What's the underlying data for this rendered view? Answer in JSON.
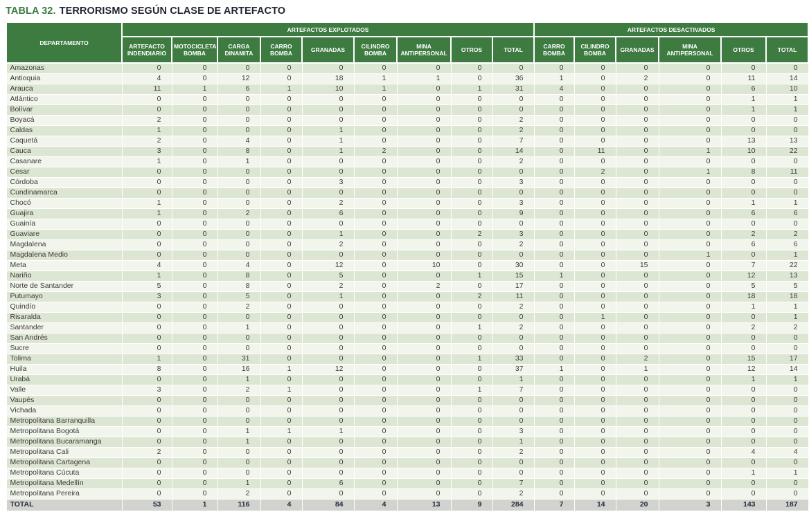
{
  "chart_data": {
    "type": "table",
    "title_prefix": "TABLA 32.",
    "title_text": "TERRORISMO SEGÚN CLASE DE ARTEFACTO",
    "header": {
      "departamento": "DEPARTAMENTO",
      "groups": [
        "ARTEFACTOS EXPLOTADOS",
        "ARTEFACTOS DESACTIVADOS"
      ],
      "columns_explotados": [
        "ARTEFACTO INDENDIARIO",
        "MOTOCICLETA BOMBA",
        "CARGA DINAMITA",
        "CARRO BOMBA",
        "GRANADAS",
        "CILINDRO BOMBA",
        "MINA ANTIPERSONAL",
        "OTROS",
        "TOTAL"
      ],
      "columns_desactivados": [
        "CARRO BOMBA",
        "CILINDRO BOMBA",
        "GRANADAS",
        "MINA ANTIPERSONAL",
        "OTROS",
        "TOTAL"
      ]
    },
    "rows": [
      {
        "departamento": "Amazonas",
        "values": [
          0,
          0,
          0,
          0,
          0,
          0,
          0,
          0,
          0,
          0,
          0,
          0,
          0,
          0,
          0
        ]
      },
      {
        "departamento": "Antioquia",
        "values": [
          4,
          0,
          12,
          0,
          18,
          1,
          1,
          0,
          36,
          1,
          0,
          2,
          0,
          11,
          14
        ]
      },
      {
        "departamento": "Arauca",
        "values": [
          11,
          1,
          6,
          1,
          10,
          1,
          0,
          1,
          31,
          4,
          0,
          0,
          0,
          6,
          10
        ]
      },
      {
        "departamento": "Atlántico",
        "values": [
          0,
          0,
          0,
          0,
          0,
          0,
          0,
          0,
          0,
          0,
          0,
          0,
          0,
          1,
          1
        ]
      },
      {
        "departamento": "Bolívar",
        "values": [
          0,
          0,
          0,
          0,
          0,
          0,
          0,
          0,
          0,
          0,
          0,
          0,
          0,
          1,
          1
        ]
      },
      {
        "departamento": "Boyacá",
        "values": [
          2,
          0,
          0,
          0,
          0,
          0,
          0,
          0,
          2,
          0,
          0,
          0,
          0,
          0,
          0
        ]
      },
      {
        "departamento": "Caldas",
        "values": [
          1,
          0,
          0,
          0,
          1,
          0,
          0,
          0,
          2,
          0,
          0,
          0,
          0,
          0,
          0
        ]
      },
      {
        "departamento": "Caquetá",
        "values": [
          2,
          0,
          4,
          0,
          1,
          0,
          0,
          0,
          7,
          0,
          0,
          0,
          0,
          13,
          13
        ]
      },
      {
        "departamento": "Cauca",
        "values": [
          3,
          0,
          8,
          0,
          1,
          2,
          0,
          0,
          14,
          0,
          11,
          0,
          1,
          10,
          22
        ]
      },
      {
        "departamento": "Casanare",
        "values": [
          1,
          0,
          1,
          0,
          0,
          0,
          0,
          0,
          2,
          0,
          0,
          0,
          0,
          0,
          0
        ]
      },
      {
        "departamento": "Cesar",
        "values": [
          0,
          0,
          0,
          0,
          0,
          0,
          0,
          0,
          0,
          0,
          2,
          0,
          1,
          8,
          11
        ]
      },
      {
        "departamento": "Córdoba",
        "values": [
          0,
          0,
          0,
          0,
          3,
          0,
          0,
          0,
          3,
          0,
          0,
          0,
          0,
          0,
          0
        ]
      },
      {
        "departamento": "Cundinamarca",
        "values": [
          0,
          0,
          0,
          0,
          0,
          0,
          0,
          0,
          0,
          0,
          0,
          0,
          0,
          0,
          0
        ]
      },
      {
        "departamento": "Chocó",
        "values": [
          1,
          0,
          0,
          0,
          2,
          0,
          0,
          0,
          3,
          0,
          0,
          0,
          0,
          1,
          1
        ]
      },
      {
        "departamento": "Guajira",
        "values": [
          1,
          0,
          2,
          0,
          6,
          0,
          0,
          0,
          9,
          0,
          0,
          0,
          0,
          6,
          6
        ]
      },
      {
        "departamento": "Guainía",
        "values": [
          0,
          0,
          0,
          0,
          0,
          0,
          0,
          0,
          0,
          0,
          0,
          0,
          0,
          0,
          0
        ]
      },
      {
        "departamento": "Guaviare",
        "values": [
          0,
          0,
          0,
          0,
          1,
          0,
          0,
          2,
          3,
          0,
          0,
          0,
          0,
          2,
          2
        ]
      },
      {
        "departamento": "Magdalena",
        "values": [
          0,
          0,
          0,
          0,
          2,
          0,
          0,
          0,
          2,
          0,
          0,
          0,
          0,
          6,
          6
        ]
      },
      {
        "departamento": "Magdalena Medio",
        "values": [
          0,
          0,
          0,
          0,
          0,
          0,
          0,
          0,
          0,
          0,
          0,
          0,
          1,
          0,
          1
        ]
      },
      {
        "departamento": "Meta",
        "values": [
          4,
          0,
          4,
          0,
          12,
          0,
          10,
          0,
          30,
          0,
          0,
          15,
          0,
          7,
          22
        ]
      },
      {
        "departamento": "Nariño",
        "values": [
          1,
          0,
          8,
          0,
          5,
          0,
          0,
          1,
          15,
          1,
          0,
          0,
          0,
          12,
          13
        ]
      },
      {
        "departamento": "Norte de Santander",
        "values": [
          5,
          0,
          8,
          0,
          2,
          0,
          2,
          0,
          17,
          0,
          0,
          0,
          0,
          5,
          5
        ]
      },
      {
        "departamento": "Putumayo",
        "values": [
          3,
          0,
          5,
          0,
          1,
          0,
          0,
          2,
          11,
          0,
          0,
          0,
          0,
          18,
          18
        ]
      },
      {
        "departamento": "Quindío",
        "values": [
          0,
          0,
          2,
          0,
          0,
          0,
          0,
          0,
          2,
          0,
          0,
          0,
          0,
          1,
          1
        ]
      },
      {
        "departamento": "Risaralda",
        "values": [
          0,
          0,
          0,
          0,
          0,
          0,
          0,
          0,
          0,
          0,
          1,
          0,
          0,
          0,
          1
        ]
      },
      {
        "departamento": "Santander",
        "values": [
          0,
          0,
          1,
          0,
          0,
          0,
          0,
          1,
          2,
          0,
          0,
          0,
          0,
          2,
          2
        ]
      },
      {
        "departamento": "San Andrés",
        "values": [
          0,
          0,
          0,
          0,
          0,
          0,
          0,
          0,
          0,
          0,
          0,
          0,
          0,
          0,
          0
        ]
      },
      {
        "departamento": "Sucre",
        "values": [
          0,
          0,
          0,
          0,
          0,
          0,
          0,
          0,
          0,
          0,
          0,
          0,
          0,
          0,
          0
        ]
      },
      {
        "departamento": "Tolima",
        "values": [
          1,
          0,
          31,
          0,
          0,
          0,
          0,
          1,
          33,
          0,
          0,
          2,
          0,
          15,
          17
        ]
      },
      {
        "departamento": "Huila",
        "values": [
          8,
          0,
          16,
          1,
          12,
          0,
          0,
          0,
          37,
          1,
          0,
          1,
          0,
          12,
          14
        ]
      },
      {
        "departamento": "Urabá",
        "values": [
          0,
          0,
          1,
          0,
          0,
          0,
          0,
          0,
          1,
          0,
          0,
          0,
          0,
          1,
          1
        ]
      },
      {
        "departamento": "Valle",
        "values": [
          3,
          0,
          2,
          1,
          0,
          0,
          0,
          1,
          7,
          0,
          0,
          0,
          0,
          0,
          0
        ]
      },
      {
        "departamento": "Vaupés",
        "values": [
          0,
          0,
          0,
          0,
          0,
          0,
          0,
          0,
          0,
          0,
          0,
          0,
          0,
          0,
          0
        ]
      },
      {
        "departamento": "Vichada",
        "values": [
          0,
          0,
          0,
          0,
          0,
          0,
          0,
          0,
          0,
          0,
          0,
          0,
          0,
          0,
          0
        ]
      },
      {
        "departamento": "Metropolitana Barranquilla",
        "values": [
          0,
          0,
          0,
          0,
          0,
          0,
          0,
          0,
          0,
          0,
          0,
          0,
          0,
          0,
          0
        ]
      },
      {
        "departamento": "Metropolitana Bogotá",
        "values": [
          0,
          0,
          1,
          1,
          1,
          0,
          0,
          0,
          3,
          0,
          0,
          0,
          0,
          0,
          0
        ]
      },
      {
        "departamento": "Metropolitana Bucaramanga",
        "values": [
          0,
          0,
          1,
          0,
          0,
          0,
          0,
          0,
          1,
          0,
          0,
          0,
          0,
          0,
          0
        ]
      },
      {
        "departamento": "Metropolitana Cali",
        "values": [
          2,
          0,
          0,
          0,
          0,
          0,
          0,
          0,
          2,
          0,
          0,
          0,
          0,
          4,
          4
        ]
      },
      {
        "departamento": "Metropolitana Cartagena",
        "values": [
          0,
          0,
          0,
          0,
          0,
          0,
          0,
          0,
          0,
          0,
          0,
          0,
          0,
          0,
          0
        ]
      },
      {
        "departamento": "Metropolitana Cúcuta",
        "values": [
          0,
          0,
          0,
          0,
          0,
          0,
          0,
          0,
          0,
          0,
          0,
          0,
          0,
          1,
          1
        ]
      },
      {
        "departamento": "Metropolitana Medellín",
        "values": [
          0,
          0,
          1,
          0,
          6,
          0,
          0,
          0,
          7,
          0,
          0,
          0,
          0,
          0,
          0
        ]
      },
      {
        "departamento": "Metropolitana Pereira",
        "values": [
          0,
          0,
          2,
          0,
          0,
          0,
          0,
          0,
          2,
          0,
          0,
          0,
          0,
          0,
          0
        ]
      }
    ],
    "total": {
      "departamento": "TOTAL",
      "values": [
        53,
        1,
        116,
        4,
        84,
        4,
        13,
        9,
        284,
        7,
        14,
        20,
        3,
        143,
        187
      ]
    },
    "colors": {
      "header_green": "#3d7b41",
      "title_green": "#3a7d42",
      "title_dark": "#1f2430",
      "row_tinted": "#dde6d2",
      "row_light": "#f2f5ec",
      "total_row_gray": "#d2d3ce"
    },
    "layout_hints": {
      "grid": "white gridlines",
      "striped": true,
      "group_spans": [
        9,
        6
      ]
    }
  }
}
